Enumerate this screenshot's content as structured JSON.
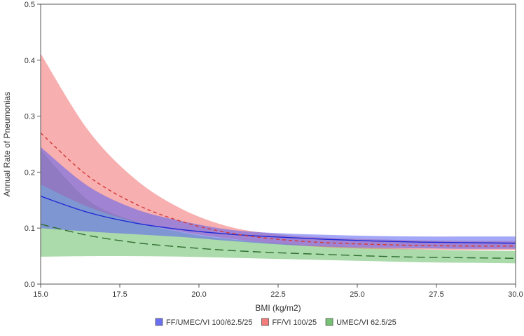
{
  "chart_data": {
    "type": "line",
    "xlabel": "BMI (kg/m2)",
    "ylabel": "Annual Rate of Pneumonias",
    "xlim": [
      15.0,
      30.0
    ],
    "ylim": [
      0.0,
      0.5
    ],
    "xticks": [
      "15.0",
      "17.5",
      "20.0",
      "22.5",
      "25.0",
      "27.5",
      "30.0"
    ],
    "yticks": [
      "0.0",
      "0.1",
      "0.2",
      "0.3",
      "0.4",
      "0.5"
    ],
    "grid": false,
    "legend_position": "bottom",
    "x": [
      15.0,
      16.5,
      18.0,
      19.5,
      21.0,
      22.5,
      24.0,
      25.5,
      27.0,
      28.5,
      30.0
    ],
    "series": [
      {
        "name": "FF/UMEC/VI 100/62.5/25",
        "color": "#5a5ef0",
        "line_color": "#1f2ad6",
        "line_style": "solid",
        "values": [
          0.157,
          0.128,
          0.109,
          0.097,
          0.089,
          0.084,
          0.08,
          0.077,
          0.075,
          0.074,
          0.073
        ],
        "lower": [
          0.1,
          0.094,
          0.089,
          0.084,
          0.077,
          0.071,
          0.067,
          0.065,
          0.064,
          0.063,
          0.063
        ],
        "upper": [
          0.245,
          0.175,
          0.134,
          0.112,
          0.097,
          0.091,
          0.088,
          0.086,
          0.085,
          0.085,
          0.085
        ]
      },
      {
        "name": "FF/VI 100/25",
        "color": "#f26d6d",
        "line_color": "#d23a3a",
        "line_style": "dashed",
        "values": [
          0.27,
          0.193,
          0.143,
          0.111,
          0.091,
          0.08,
          0.074,
          0.071,
          0.069,
          0.068,
          0.068
        ],
        "lower": [
          0.178,
          0.138,
          0.111,
          0.093,
          0.081,
          0.072,
          0.066,
          0.063,
          0.062,
          0.061,
          0.061
        ],
        "upper": [
          0.412,
          0.275,
          0.187,
          0.133,
          0.102,
          0.089,
          0.083,
          0.08,
          0.078,
          0.077,
          0.077
        ]
      },
      {
        "name": "UMEC/VI 62.5/25",
        "color": "#66bb66",
        "line_color": "#2e6e2e",
        "line_style": "longdash",
        "values": [
          0.107,
          0.087,
          0.074,
          0.066,
          0.06,
          0.056,
          0.053,
          0.05,
          0.048,
          0.047,
          0.046
        ],
        "lower": [
          0.049,
          0.05,
          0.05,
          0.049,
          0.047,
          0.045,
          0.043,
          0.041,
          0.039,
          0.038,
          0.037
        ],
        "upper": [
          0.24,
          0.15,
          0.112,
          0.092,
          0.08,
          0.073,
          0.068,
          0.065,
          0.062,
          0.06,
          0.059
        ]
      }
    ]
  }
}
